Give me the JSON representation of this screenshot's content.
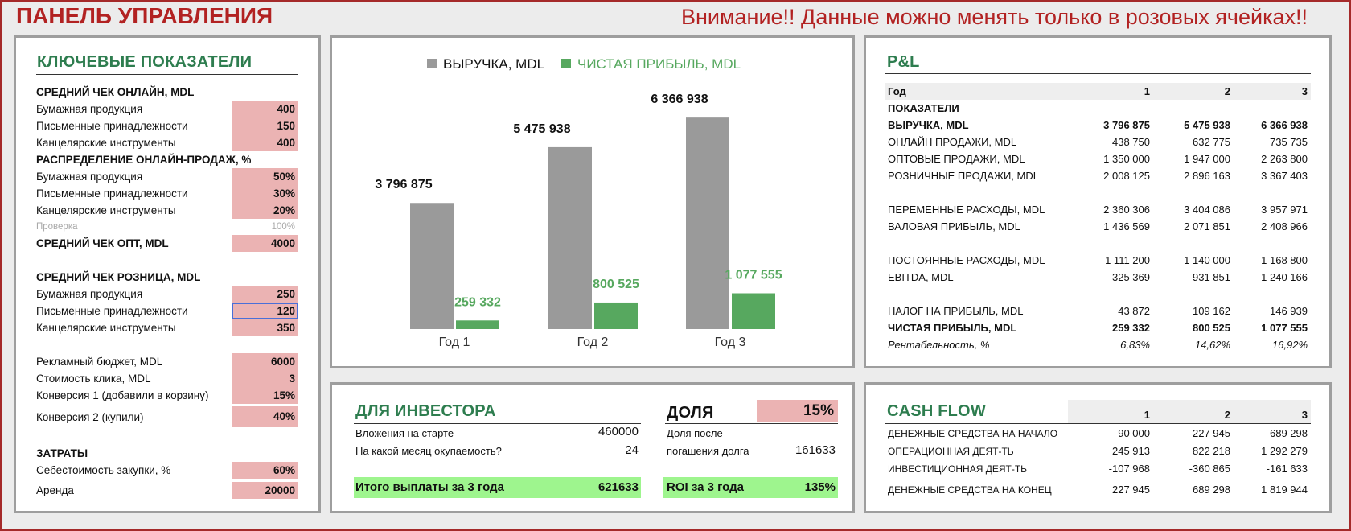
{
  "header": {
    "title": "ПАНЕЛЬ УПРАВЛЕНИЯ",
    "warning": "Внимание!! Данные можно менять только в розовых ячейках!!"
  },
  "kpi": {
    "title": "КЛЮЧЕВЫЕ ПОКАЗАТЕЛИ",
    "online_title": "СРЕДНИЙ ЧЕК ОНЛАЙН,  MDL",
    "online": [
      {
        "label": "Бумажная продукция",
        "value": "400"
      },
      {
        "label": "Письменные принадлежности",
        "value": "150"
      },
      {
        "label": "Канцелярские инструменты",
        "value": "400"
      }
    ],
    "dist_title": "РАСПРЕДЕЛЕНИЕ ОНЛАЙН-ПРОДАЖ, %",
    "dist": [
      {
        "label": "Бумажная продукция",
        "value": "50%"
      },
      {
        "label": "Письменные принадлежности",
        "value": "30%"
      },
      {
        "label": "Канцелярские инструменты",
        "value": "20%"
      }
    ],
    "check_label": "Проверка",
    "check_value": "100%",
    "opt_title": "СРЕДНИЙ ЧЕК ОПТ,  MDL",
    "opt_value": "4000",
    "retail_title": "СРЕДНИЙ ЧЕК РОЗНИЦА,  MDL",
    "retail": [
      {
        "label": "Бумажная продукция",
        "value": "250"
      },
      {
        "label": "Письменные принадлежности",
        "value": "120"
      },
      {
        "label": "Канцелярские инструменты",
        "value": "350"
      }
    ],
    "ads": [
      {
        "label": "Рекламный бюджет, MDL",
        "value": "6000"
      },
      {
        "label": "Стоимость клика, MDL",
        "value": "3"
      },
      {
        "label": "Конверсия 1 (добавили в корзину)",
        "value": "15%"
      },
      {
        "label": "Конверсия 2 (купили)",
        "value": "40%"
      }
    ],
    "costs_title": "ЗАТРАТЫ",
    "costs": [
      {
        "label": "Себестоимость закупки, %",
        "value": "60%"
      },
      {
        "label": "Аренда",
        "value": "20000"
      }
    ]
  },
  "chart_data": {
    "type": "bar",
    "categories": [
      "Год 1",
      "Год 2",
      "Год 3"
    ],
    "series": [
      {
        "name": "ВЫРУЧКА, MDL",
        "values": [
          3796875,
          5475938,
          6366938
        ],
        "labels": [
          "3 796 875",
          "5 475 938",
          "6 366 938"
        ],
        "color": "#9a9a9a"
      },
      {
        "name": "ЧИСТАЯ ПРИБЫЛЬ, MDL",
        "values": [
          259332,
          800525,
          1077555
        ],
        "labels": [
          "259 332",
          "800 525",
          "1 077 555"
        ],
        "color": "#57a85f"
      }
    ],
    "ylim": [
      0,
      7000000
    ],
    "legend": "top",
    "grid": false
  },
  "pl": {
    "title": "P&L",
    "head": [
      "Год",
      "1",
      "2",
      "3"
    ],
    "section": "ПОКАЗАТЕЛИ",
    "rows": [
      {
        "c": [
          "ВЫРУЧКА, MDL",
          "3 796 875",
          "5 475 938",
          "6 366 938"
        ],
        "style": "bold"
      },
      {
        "c": [
          "ОНЛАЙН ПРОДАЖИ, MDL",
          "438 750",
          "632 775",
          "735 735"
        ],
        "style": ""
      },
      {
        "c": [
          "ОПТОВЫЕ ПРОДАЖИ, MDL",
          "1 350 000",
          "1 947 000",
          "2 263 800"
        ],
        "style": ""
      },
      {
        "c": [
          "РОЗНИЧНЫЕ ПРОДАЖИ, MDL",
          "2 008 125",
          "2 896 163",
          "3 367 403"
        ],
        "style": ""
      },
      {
        "c": [
          "ПЕРЕМЕННЫЕ РАСХОДЫ, MDL",
          "2 360 306",
          "3 404 086",
          "3 957 971"
        ],
        "style": ""
      },
      {
        "c": [
          "ВАЛОВАЯ ПРИБЫЛЬ, MDL",
          "1 436 569",
          "2 071 851",
          "2 408 966"
        ],
        "style": ""
      },
      {
        "c": [
          "ПОСТОЯННЫЕ РАСХОДЫ, MDL",
          "1 111 200",
          "1 140 000",
          "1 168 800"
        ],
        "style": ""
      },
      {
        "c": [
          "EBITDA, MDL",
          "325 369",
          "931 851",
          "1 240 166"
        ],
        "style": ""
      },
      {
        "c": [
          "НАЛОГ НА ПРИБЫЛЬ, MDL",
          "43 872",
          "109 162",
          "146 939"
        ],
        "style": ""
      },
      {
        "c": [
          "ЧИСТАЯ ПРИБЫЛЬ, MDL",
          "259 332",
          "800 525",
          "1 077 555"
        ],
        "style": "bold"
      },
      {
        "c": [
          "Рентабельность, %",
          "6,83%",
          "14,62%",
          "16,92%"
        ],
        "style": "ital"
      }
    ]
  },
  "investor": {
    "title": "ДЛЯ ИНВЕСТОРА",
    "start_label": "Вложения на старте",
    "start_value": "460000",
    "payback_label": "На какой месяц окупаемость?",
    "payback_value": "24",
    "total_label": "Итого выплаты за 3 года",
    "total_value": "621633",
    "share_title": "ДОЛЯ",
    "share_value": "15%",
    "share_after_label1": "Доля после",
    "share_after_label2": "погашения долга",
    "share_after_value": "161633",
    "roi_label": "ROI за 3 года",
    "roi_value": "135%"
  },
  "cashflow": {
    "title": "CASH FLOW",
    "head": [
      "1",
      "2",
      "3"
    ],
    "rows": [
      [
        "ДЕНЕЖНЫЕ СРЕДСТВА НА НАЧАЛО",
        "90 000",
        "227 945",
        "689 298"
      ],
      [
        "ОПЕРАЦИОННАЯ ДЕЯТ-ТЬ",
        "245 913",
        "822 218",
        "1 292 279"
      ],
      [
        "ИНВЕСТИЦИОННАЯ ДЕЯТ-ТЬ",
        "-107 968",
        "-360 865",
        "-161 633"
      ],
      [
        "ДЕНЕЖНЫЕ СРЕДСТВА НА КОНЕЦ",
        "227 945",
        "689 298",
        "1 819 944"
      ]
    ]
  }
}
